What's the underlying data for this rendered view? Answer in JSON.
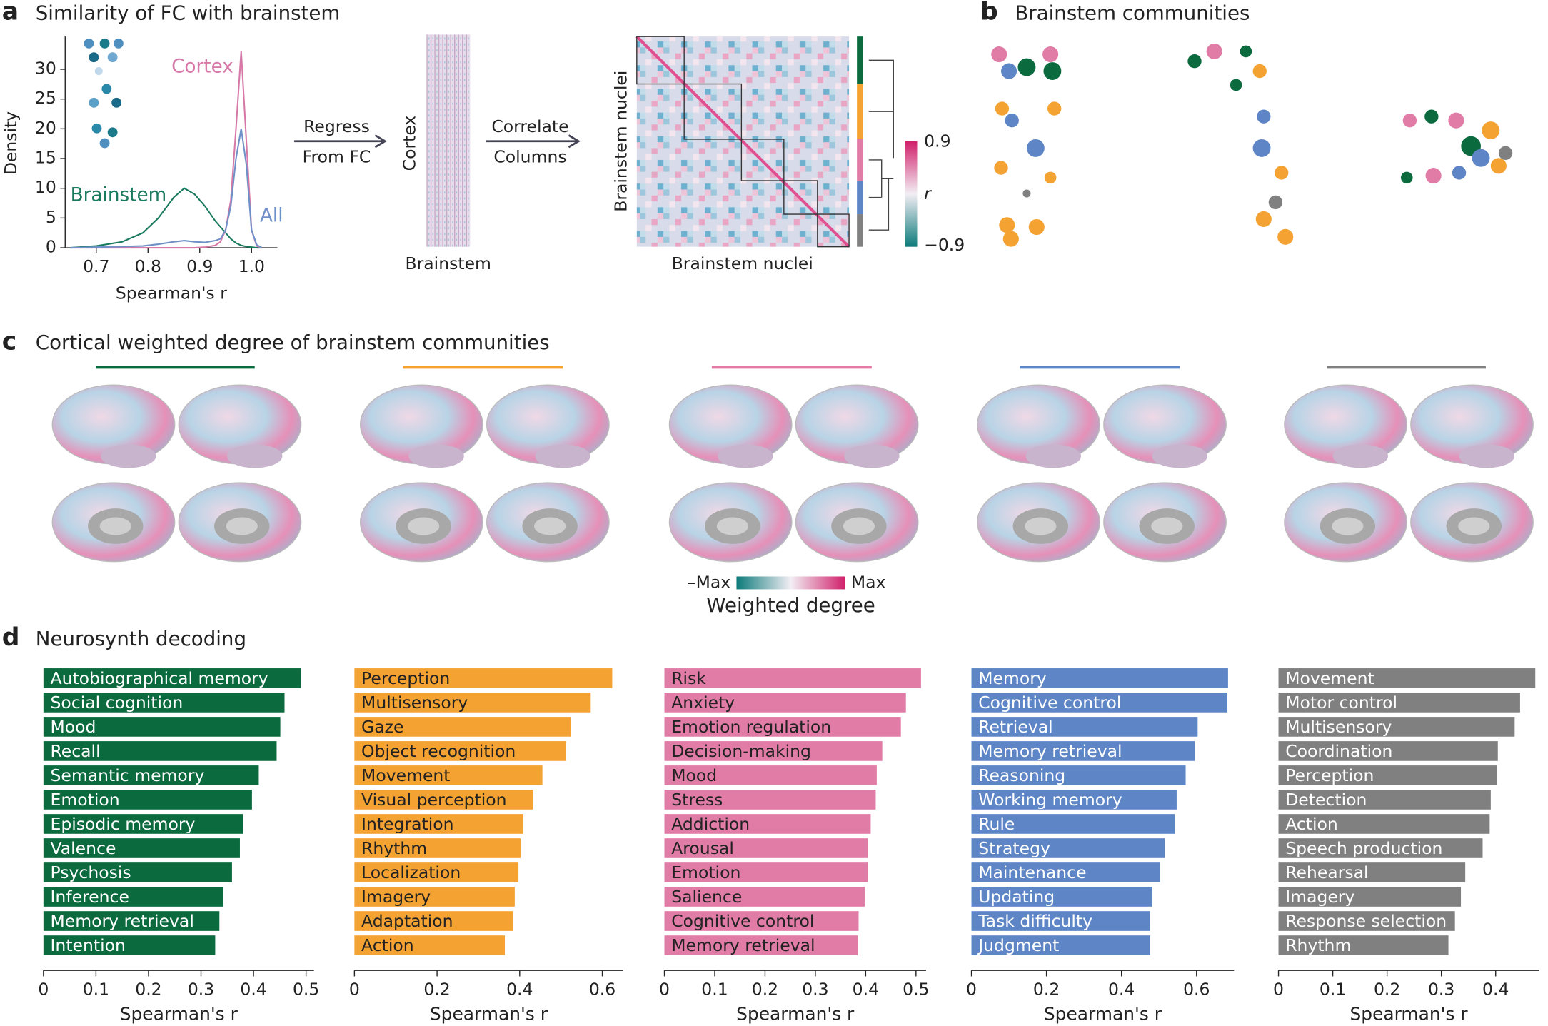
{
  "panels": {
    "a": {
      "letter": "a",
      "title": "Similarity of FC with brainstem",
      "regress": "Regress",
      "from_fc": "From FC",
      "cortex": "Cortex",
      "brainstem": "Brainstem",
      "correlate": "Correlate",
      "columns": "Columns",
      "nuclei_y": "Brainstem nuclei",
      "nuclei_x": "Brainstem nuclei",
      "cbar_top": "0.9",
      "cbar_label": "r",
      "cbar_bottom": "−0.9"
    },
    "b": {
      "letter": "b",
      "title": "Brainstem communities"
    },
    "c": {
      "letter": "c",
      "title": "Cortical weighted degree of brainstem communities",
      "cbar_min": "–Max",
      "cbar_max": "Max",
      "cbar_label": "Weighted degree"
    },
    "d": {
      "letter": "d",
      "title": "Neurosynth decoding"
    }
  },
  "chart_data": [
    {
      "type": "line",
      "xlabel": "Spearman's r",
      "ylabel": "Density",
      "x": [
        0.65,
        0.7,
        0.75,
        0.79,
        0.82,
        0.85,
        0.87,
        0.89,
        0.91,
        0.93,
        0.94,
        0.95,
        0.96,
        0.97,
        0.98,
        0.99,
        1.0,
        1.01,
        1.02
      ],
      "series": [
        {
          "name": "Brainstem",
          "color": "#1a7a5e",
          "values": [
            0,
            0.3,
            1,
            2.5,
            5,
            8.5,
            10,
            9,
            7,
            4.5,
            3.5,
            2.5,
            1.5,
            0.8,
            0.4,
            0.2,
            0.1,
            0,
            0
          ]
        },
        {
          "name": "Cortex",
          "color": "#d779a8",
          "values": [
            0,
            0,
            0,
            0,
            0,
            0,
            0,
            0,
            0.1,
            0.4,
            1,
            3,
            8,
            20,
            33,
            18,
            3,
            0.3,
            0
          ]
        },
        {
          "name": "All",
          "color": "#7090c8",
          "values": [
            0,
            0.1,
            0.2,
            0.3,
            0.6,
            1,
            1.2,
            1,
            0.9,
            1.2,
            1.5,
            3,
            7,
            15,
            20,
            14,
            3,
            0.5,
            0
          ]
        }
      ],
      "xlim": [
        0.64,
        1.05
      ],
      "xticks": [
        0.7,
        0.8,
        0.9,
        {
          "value": 1.0,
          "label": "1.0"
        }
      ],
      "ylim": [
        0,
        35.5
      ],
      "yticks": [
        0,
        5,
        10,
        15,
        20,
        25,
        30
      ]
    },
    {
      "type": "hbar",
      "color": "#0b6a3e",
      "label_color": "#ffffff",
      "xlabel": "Spearman's r",
      "categories": [
        "Autobiographical memory",
        "Social cognition",
        "Mood",
        "Recall",
        "Semantic memory",
        "Emotion",
        "Episodic memory",
        "Valence",
        "Psychosis",
        "Inference",
        "Memory retrieval",
        "Intention"
      ],
      "values": [
        0.49,
        0.459,
        0.451,
        0.444,
        0.41,
        0.397,
        0.38,
        0.374,
        0.359,
        0.342,
        0.335,
        0.327
      ],
      "xlim": [
        0,
        0.515
      ],
      "xticks": [
        0,
        0.1,
        0.2,
        0.3,
        0.4,
        0.5
      ]
    },
    {
      "type": "hbar",
      "color": "#f4a232",
      "label_color": "#222222",
      "xlabel": "Spearman's r",
      "categories": [
        "Perception",
        "Multisensory",
        "Gaze",
        "Object recognition",
        "Movement",
        "Visual perception",
        "Integration",
        "Rhythm",
        "Localization",
        "Imagery",
        "Adaptation",
        "Action"
      ],
      "values": [
        0.624,
        0.572,
        0.524,
        0.512,
        0.455,
        0.433,
        0.409,
        0.402,
        0.397,
        0.388,
        0.383,
        0.364
      ],
      "xlim": [
        0,
        0.65
      ],
      "xticks": [
        0,
        0.2,
        0.4,
        0.6
      ]
    },
    {
      "type": "hbar",
      "color": "#e07ca6",
      "label_color": "#222222",
      "xlabel": "Spearman's r",
      "categories": [
        "Risk",
        "Anxiety",
        "Emotion regulation",
        "Decision-making",
        "Mood",
        "Stress",
        "Addiction",
        "Arousal",
        "Emotion",
        "Salience",
        "Cognitive control",
        "Memory retrieval"
      ],
      "values": [
        0.51,
        0.48,
        0.47,
        0.433,
        0.422,
        0.42,
        0.41,
        0.404,
        0.404,
        0.398,
        0.386,
        0.384
      ],
      "xlim": [
        0,
        0.52
      ],
      "xticks": [
        0,
        0.1,
        0.2,
        0.3,
        0.4,
        0.5
      ]
    },
    {
      "type": "hbar",
      "color": "#5e86c6",
      "label_color": "#ffffff",
      "xlabel": "Spearman's r",
      "categories": [
        "Memory",
        "Cognitive control",
        "Retrieval",
        "Memory retrieval",
        "Reasoning",
        "Working memory",
        "Rule",
        "Strategy",
        "Maintenance",
        "Updating",
        "Task difficulty",
        "Judgment"
      ],
      "values": [
        0.684,
        0.682,
        0.603,
        0.595,
        0.571,
        0.547,
        0.542,
        0.516,
        0.503,
        0.482,
        0.476,
        0.476
      ],
      "xlim": [
        0,
        0.7
      ],
      "xticks": [
        0,
        0.2,
        0.4,
        0.6
      ]
    },
    {
      "type": "hbar",
      "color": "#808080",
      "label_color": "#ffffff",
      "xlabel": "Spearman's r",
      "categories": [
        "Movement",
        "Motor control",
        "Multisensory",
        "Coordination",
        "Perception",
        "Detection",
        "Action",
        "Speech production",
        "Rehearsal",
        "Imagery",
        "Response selection",
        "Rhythm"
      ],
      "values": [
        0.473,
        0.445,
        0.435,
        0.404,
        0.402,
        0.391,
        0.389,
        0.376,
        0.344,
        0.336,
        0.325,
        0.313
      ],
      "xlim": [
        0,
        0.48
      ],
      "xticks": [
        0,
        0.1,
        0.2,
        0.3,
        0.4
      ]
    }
  ]
}
